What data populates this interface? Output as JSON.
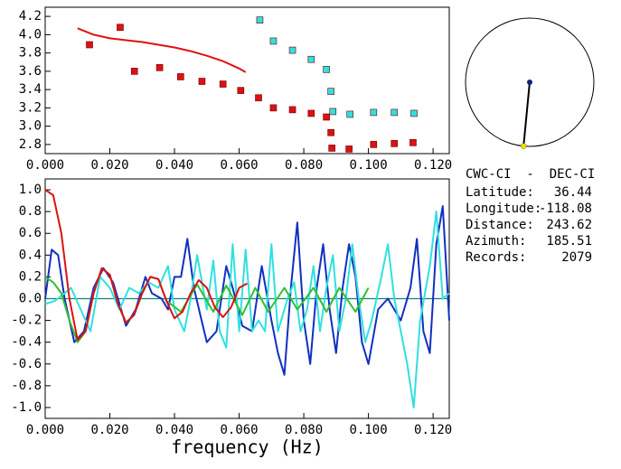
{
  "chart_data": [
    {
      "type": "scatter",
      "xlim": [
        0,
        0.125
      ],
      "ylim": [
        2.7,
        4.3
      ],
      "xticks": [
        {
          "value": 0,
          "label": "0.000"
        },
        {
          "value": 0.02,
          "label": "0.020"
        },
        {
          "value": 0.04,
          "label": "0.040"
        },
        {
          "value": 0.06,
          "label": "0.060"
        },
        {
          "value": 0.08,
          "label": "0.080"
        },
        {
          "value": 0.1,
          "label": "0.100"
        },
        {
          "value": 0.12,
          "label": "0.120"
        }
      ],
      "yticks": [
        2.8,
        {
          "value": 3,
          "label": "3.0"
        },
        3.2,
        3.4,
        3.6,
        3.8,
        {
          "value": 4,
          "label": "4.0"
        },
        4.2
      ],
      "series": [
        {
          "style": "square",
          "color": "#e01010",
          "x": [
            0.0137,
            0.0232,
            0.0276,
            0.0354,
            0.0419,
            0.0485,
            0.055,
            0.0605,
            0.066,
            0.0706,
            0.0765,
            0.0823,
            0.087,
            0.0884,
            0.0887,
            0.094,
            0.1016,
            0.108,
            0.1138
          ],
          "values": [
            3.89,
            4.08,
            3.6,
            3.64,
            3.54,
            3.49,
            3.46,
            3.39,
            3.31,
            3.2,
            3.18,
            3.14,
            3.1,
            2.93,
            2.76,
            2.75,
            2.8,
            2.81,
            2.82
          ]
        },
        {
          "style": "square",
          "color": "#30e0e0",
          "x": [
            0.0664,
            0.0706,
            0.0765,
            0.0823,
            0.087,
            0.0884,
            0.089,
            0.0943,
            0.1016,
            0.108,
            0.1141
          ],
          "values": [
            4.16,
            3.93,
            3.83,
            3.73,
            3.62,
            3.38,
            3.16,
            3.13,
            3.15,
            3.15,
            3.14
          ]
        },
        {
          "style": "line",
          "color": "#e01010",
          "x": [
            0.01,
            0.015,
            0.02,
            0.025,
            0.03,
            0.035,
            0.04,
            0.045,
            0.05,
            0.055,
            0.06,
            0.062
          ],
          "values": [
            4.07,
            4.0,
            3.96,
            3.94,
            3.92,
            3.89,
            3.86,
            3.82,
            3.77,
            3.71,
            3.63,
            3.59
          ]
        }
      ]
    },
    {
      "type": "line",
      "x_label": "frequency (Hz)",
      "xlim": [
        0,
        0.125
      ],
      "ylim": [
        -1.1,
        1.1
      ],
      "xticks": [
        {
          "value": 0,
          "label": "0.000"
        },
        {
          "value": 0.02,
          "label": "0.020"
        },
        {
          "value": 0.04,
          "label": "0.040"
        },
        {
          "value": 0.06,
          "label": "0.060"
        },
        {
          "value": 0.08,
          "label": "0.080"
        },
        {
          "value": 0.1,
          "label": "0.100"
        },
        {
          "value": 0.12,
          "label": "0.120"
        }
      ],
      "yticks": [
        {
          "value": -1,
          "label": "-1.0"
        },
        -0.8,
        -0.6,
        -0.4,
        -0.2,
        {
          "value": 0,
          "label": "0.0"
        },
        0.2,
        0.4,
        0.6,
        0.8,
        {
          "value": 1,
          "label": "1.0"
        }
      ],
      "series": [
        {
          "style": "line",
          "color": "#1030c0",
          "x": [
            0,
            0.002,
            0.004,
            0.006,
            0.009,
            0.012,
            0.015,
            0.018,
            0.021,
            0.025,
            0.028,
            0.031,
            0.033,
            0.036,
            0.038,
            0.04,
            0.042,
            0.044,
            0.046,
            0.048,
            0.05,
            0.053,
            0.056,
            0.058,
            0.061,
            0.064,
            0.067,
            0.07,
            0.072,
            0.074,
            0.076,
            0.078,
            0.08,
            0.082,
            0.084,
            0.086,
            0.088,
            0.09,
            0.092,
            0.094,
            0.096,
            0.098,
            0.1,
            0.103,
            0.106,
            0.11,
            0.113,
            0.115,
            0.117,
            0.119,
            0.121,
            0.123,
            0.125
          ],
          "values": [
            0.0,
            0.45,
            0.4,
            0.0,
            -0.4,
            -0.3,
            0.1,
            0.28,
            0.15,
            -0.25,
            -0.1,
            0.2,
            0.05,
            0.0,
            -0.1,
            0.2,
            0.2,
            0.55,
            0.1,
            -0.15,
            -0.4,
            -0.3,
            0.3,
            0.1,
            -0.25,
            -0.3,
            0.3,
            -0.2,
            -0.5,
            -0.7,
            0.1,
            0.7,
            -0.2,
            -0.6,
            0.1,
            0.5,
            -0.1,
            -0.5,
            0.1,
            0.5,
            0.2,
            -0.4,
            -0.6,
            -0.1,
            0.0,
            -0.2,
            0.1,
            0.55,
            -0.3,
            -0.5,
            0.5,
            0.85,
            -0.2
          ]
        },
        {
          "style": "line",
          "color": "#30e0e0",
          "x": [
            0,
            0.003,
            0.006,
            0.008,
            0.011,
            0.014,
            0.017,
            0.02,
            0.023,
            0.026,
            0.029,
            0.032,
            0.035,
            0.038,
            0.04,
            0.043,
            0.045,
            0.047,
            0.05,
            0.052,
            0.054,
            0.056,
            0.058,
            0.06,
            0.062,
            0.064,
            0.066,
            0.068,
            0.07,
            0.072,
            0.075,
            0.077,
            0.079,
            0.081,
            0.083,
            0.085,
            0.087,
            0.089,
            0.091,
            0.093,
            0.095,
            0.097,
            0.099,
            0.101,
            0.104,
            0.106,
            0.108,
            0.11,
            0.112,
            0.114,
            0.116,
            0.119,
            0.121,
            0.123,
            0.125
          ],
          "values": [
            -0.05,
            -0.02,
            0.05,
            0.1,
            -0.1,
            -0.3,
            0.2,
            0.1,
            -0.1,
            0.1,
            0.05,
            0.15,
            0.1,
            0.3,
            -0.1,
            -0.3,
            0.0,
            0.4,
            -0.1,
            0.35,
            -0.3,
            -0.45,
            0.5,
            -0.3,
            0.45,
            -0.3,
            -0.2,
            -0.3,
            0.5,
            -0.3,
            0.0,
            0.15,
            -0.3,
            -0.1,
            0.3,
            -0.3,
            0.1,
            0.4,
            -0.3,
            0.0,
            0.5,
            0.0,
            -0.4,
            -0.2,
            0.2,
            0.5,
            0.0,
            -0.3,
            -0.6,
            -1.0,
            -0.2,
            0.3,
            0.8,
            0.0,
            0.05
          ]
        },
        {
          "style": "line",
          "color": "#30c030",
          "x": [
            0,
            0.0025,
            0.005,
            0.0075,
            0.01,
            0.0125,
            0.015,
            0.0175,
            0.02,
            0.0225,
            0.025,
            0.0275,
            0.03,
            0.0325,
            0.035,
            0.0375,
            0.042,
            0.047,
            0.052,
            0.056,
            0.061,
            0.065,
            0.069,
            0.074,
            0.078,
            0.083,
            0.087,
            0.091,
            0.096,
            0.1
          ],
          "values": [
            0.2,
            0.15,
            0.05,
            -0.2,
            -0.4,
            -0.3,
            0.05,
            0.28,
            0.22,
            -0.05,
            -0.22,
            -0.15,
            0.05,
            0.2,
            0.18,
            -0.02,
            -0.12,
            0.13,
            -0.12,
            0.12,
            -0.15,
            0.1,
            -0.12,
            0.1,
            -0.1,
            0.1,
            -0.12,
            0.1,
            -0.12,
            0.1
          ]
        },
        {
          "style": "line",
          "color": "#e01010",
          "x": [
            0,
            0.0025,
            0.005,
            0.0075,
            0.01,
            0.0125,
            0.015,
            0.0175,
            0.02,
            0.0225,
            0.025,
            0.0275,
            0.03,
            0.0325,
            0.035,
            0.0375,
            0.04,
            0.0425,
            0.045,
            0.0475,
            0.05,
            0.0525,
            0.055,
            0.0575,
            0.06,
            0.0625
          ],
          "values": [
            1.0,
            0.95,
            0.6,
            0.0,
            -0.38,
            -0.3,
            0.05,
            0.28,
            0.22,
            -0.05,
            -0.22,
            -0.15,
            0.05,
            0.2,
            0.18,
            -0.02,
            -0.18,
            -0.12,
            0.05,
            0.17,
            0.1,
            -0.08,
            -0.17,
            -0.08,
            0.1,
            0.14
          ]
        }
      ]
    }
  ],
  "info": {
    "stations": "CWC-CI  -  DEC-CI",
    "fields": [
      {
        "label": "Latitude:",
        "value": "36.44"
      },
      {
        "label": "Longitude:",
        "value": "-118.08"
      },
      {
        "label": "Distance:",
        "value": "243.62"
      },
      {
        "label": "Azimuth:",
        "value": "185.51"
      },
      {
        "label": "Records:",
        "value": "2079"
      }
    ]
  }
}
